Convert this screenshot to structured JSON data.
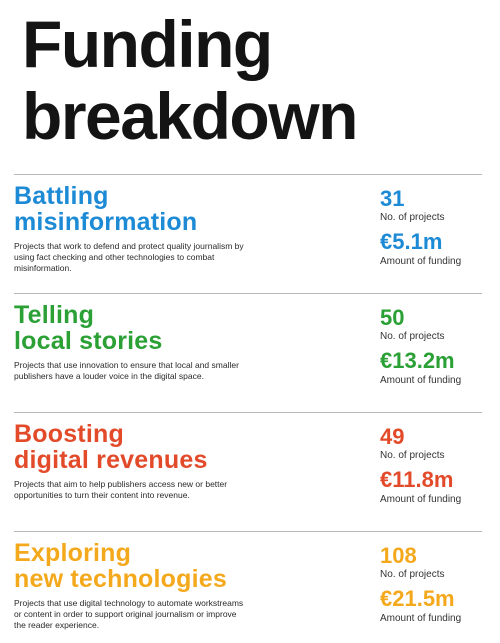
{
  "title": {
    "line1": "Funding",
    "line2": "breakdown"
  },
  "colors": {
    "blue": "#1d8ad6",
    "green": "#2aa035",
    "red": "#e24a2a",
    "orange": "#f4a81c"
  },
  "sections": [
    {
      "heading_line1": "Battling",
      "heading_line2": "misinformation",
      "description": "Projects that work to defend and protect quality journalism by using fact checking and other technologies to combat misinformation.",
      "projects": "31",
      "projects_label": "No. of projects",
      "funding": "€5.1m",
      "funding_label": "Amount of funding"
    },
    {
      "heading_line1": "Telling",
      "heading_line2": "local stories",
      "description": "Projects that use innovation to ensure that local and smaller publishers have a louder voice in the digital space.",
      "projects": "50",
      "projects_label": "No. of projects",
      "funding": "€13.2m",
      "funding_label": "Amount of funding"
    },
    {
      "heading_line1": "Boosting",
      "heading_line2": "digital revenues",
      "description": "Projects that aim to help publishers access new or better opportunities to turn their content into revenue.",
      "projects": "49",
      "projects_label": "No. of projects",
      "funding": "€11.8m",
      "funding_label": "Amount of funding"
    },
    {
      "heading_line1": "Exploring",
      "heading_line2": "new technologies",
      "description": "Projects that use digital technology to automate workstreams or content in order to support original journalism or improve the reader experience.",
      "projects": "108",
      "projects_label": "No. of projects",
      "funding": "€21.5m",
      "funding_label": "Amount of funding"
    }
  ]
}
